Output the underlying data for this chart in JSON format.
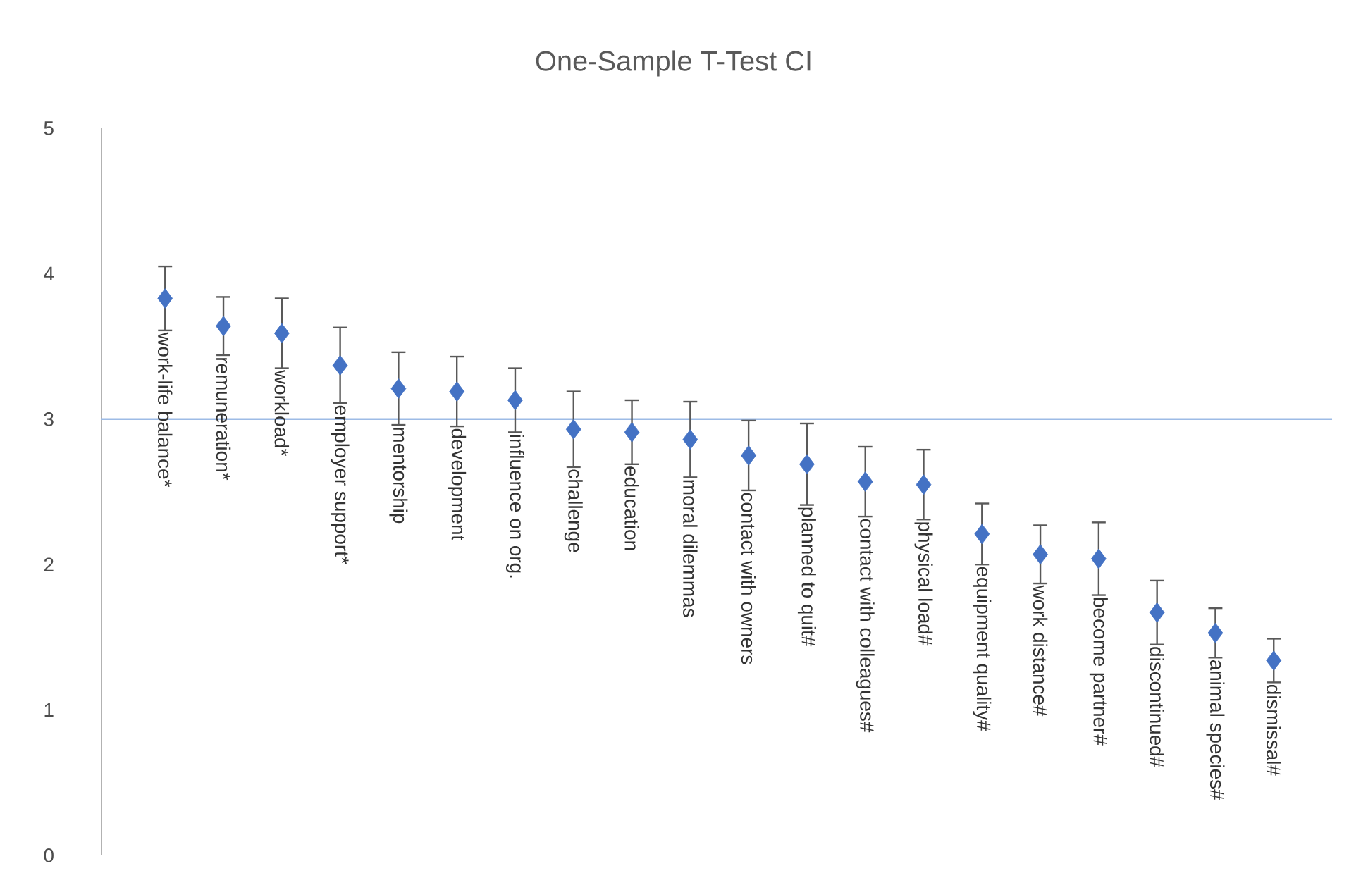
{
  "chart_data": {
    "type": "scatter",
    "title": "One-Sample T-Test CI",
    "categories": [
      "work-life balance*",
      "remuneration*",
      "workload*",
      "employer support*",
      "mentorship",
      "development",
      "influence on org.",
      "challenge",
      "education",
      "moral dilemmas",
      "contact with owners",
      "planned to quit#",
      "contact with colleagues#",
      "physical load#",
      "equipment quality#",
      "work distance#",
      "become partner#",
      "discontinued#",
      "animal species#",
      "dismissal#"
    ],
    "values": [
      3.83,
      3.64,
      3.59,
      3.37,
      3.21,
      3.19,
      3.13,
      2.93,
      2.91,
      2.86,
      2.75,
      2.69,
      2.57,
      2.55,
      2.21,
      2.07,
      2.04,
      1.67,
      1.53,
      1.34
    ],
    "errors": [
      0.22,
      0.2,
      0.24,
      0.26,
      0.25,
      0.24,
      0.22,
      0.26,
      0.22,
      0.26,
      0.24,
      0.28,
      0.24,
      0.24,
      0.21,
      0.2,
      0.25,
      0.22,
      0.17,
      0.15
    ],
    "color": "#4472c4",
    "marker": "diamond",
    "ylim": [
      0,
      5
    ],
    "yticks": [
      0,
      1,
      2,
      3,
      4,
      5
    ],
    "grid": false,
    "legend": false,
    "ref_lines": [
      {
        "axis": "y",
        "value": 3,
        "color": "#9dbbe6"
      }
    ]
  }
}
